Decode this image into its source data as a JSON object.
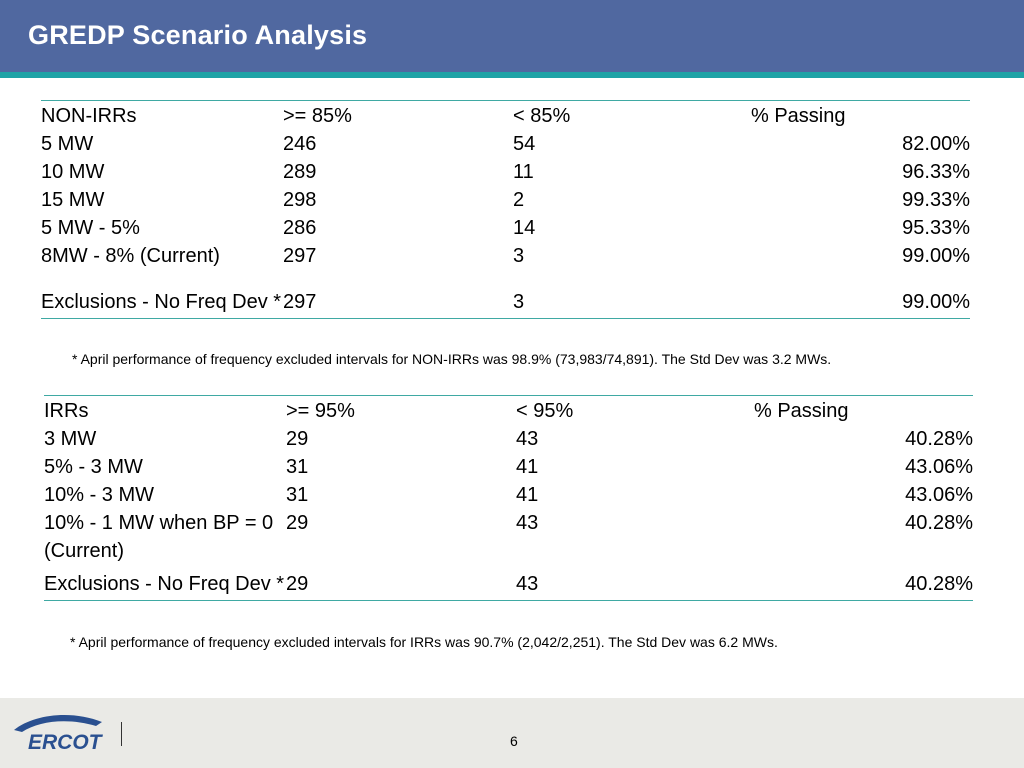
{
  "title": "GREDP Scenario Analysis",
  "non_irr_table": {
    "headers": [
      "NON-IRRs",
      ">= 85%",
      "< 85%",
      "% Passing"
    ],
    "rows": [
      [
        "5 MW",
        "246",
        "54",
        "82.00%"
      ],
      [
        "10 MW",
        "289",
        "11",
        "96.33%"
      ],
      [
        "15 MW",
        "298",
        "2",
        "99.33%"
      ],
      [
        "5 MW - 5%",
        "286",
        "14",
        "95.33%"
      ],
      [
        "8MW - 8% (Current)",
        "297",
        "3",
        "99.00%"
      ],
      [
        "Exclusions - No Freq Dev *",
        "297",
        "3",
        "99.00%"
      ]
    ],
    "footnote": "* April performance of frequency excluded intervals for NON-IRRs was 98.9% (73,983/74,891).  The Std Dev was 3.2 MWs."
  },
  "irr_table": {
    "headers": [
      "IRRs",
      ">= 95%",
      "< 95%",
      "% Passing"
    ],
    "rows": [
      [
        "3 MW",
        "29",
        "43",
        "40.28%"
      ],
      [
        "5% - 3 MW",
        "31",
        "41",
        "43.06%"
      ],
      [
        "10% - 3 MW",
        "31",
        "41",
        "43.06%"
      ],
      [
        "10% - 1 MW when BP = 0 (Current)",
        "29",
        "43",
        "40.28%"
      ],
      [
        "Exclusions - No Freq Dev  *",
        "29",
        "43",
        "40.28%"
      ]
    ],
    "footnote": "* April performance of frequency excluded intervals for IRRs was 90.7% (2,042/2,251).  The Std Dev was 6.2 MWs."
  },
  "footer": {
    "logo_text": "ERCOT",
    "page_number": "6"
  },
  "colors": {
    "header_bg": "#5068a0",
    "header_stripe": "#1fa3a6",
    "rule": "#3fa9a3",
    "footer_bg": "#eaeae6",
    "logo_blue": "#2a5090"
  }
}
